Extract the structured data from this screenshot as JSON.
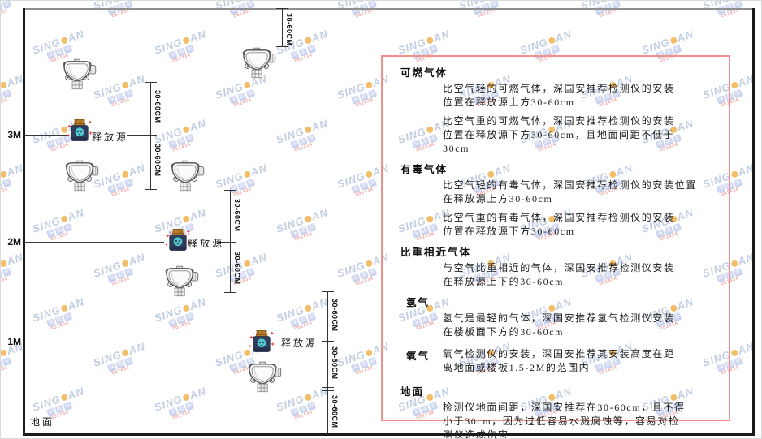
{
  "diagram": {
    "dim_label": "30-60CM",
    "heights": {
      "h3": "3M",
      "h2": "2M",
      "h1": "1M"
    },
    "ground_label": "地面",
    "release_source_label": "释放源"
  },
  "watermark": {
    "brand_left": "SING",
    "brand_right": "AN",
    "squares": "深国安",
    "code": "661434"
  },
  "panel": {
    "sections": [
      {
        "heading": "可燃气体",
        "paras": [
          "比空气轻的可燃气体，深国安推荐检测仪的安装\n位置在释放源上方30-60cm",
          "比空气重的可燃气体，深国安推荐检测仪的安装\n位置在释放源下方30-60cm，且地面间距不低于\n30cm"
        ]
      },
      {
        "heading": "有毒气体",
        "paras": [
          "比空气轻的有毒气体，深国安推荐检测仪的安装位置\n在释放源上方30-60cm",
          "比空气重的有毒气体，深国安推荐检测仪的安装\n位置在释放源下方30-60cm"
        ]
      },
      {
        "heading": "比重相近气体",
        "paras": [
          "与空气比重相近的气体，深国安推荐检测仪安装\n在释放源上下的30-60cm"
        ]
      },
      {
        "heading": "氢气",
        "paras": [
          "氢气是最轻的气体，深国安推荐氢气检测仪安装\n在楼板面下方的30-60cm"
        ]
      },
      {
        "heading": "氧气",
        "paras": [
          "氧气检测仪的安装，深国安推荐其安装高度在距\n离地面或楼板1.5-2M的范围内"
        ]
      },
      {
        "heading": "地面",
        "paras": [
          "检测仪地面间距，深国安推荐在30-60cm，且不得\n小于30cm，因为过低容易水溅腐蚀等，容易对检\n测仪造成伤害"
        ]
      }
    ]
  }
}
